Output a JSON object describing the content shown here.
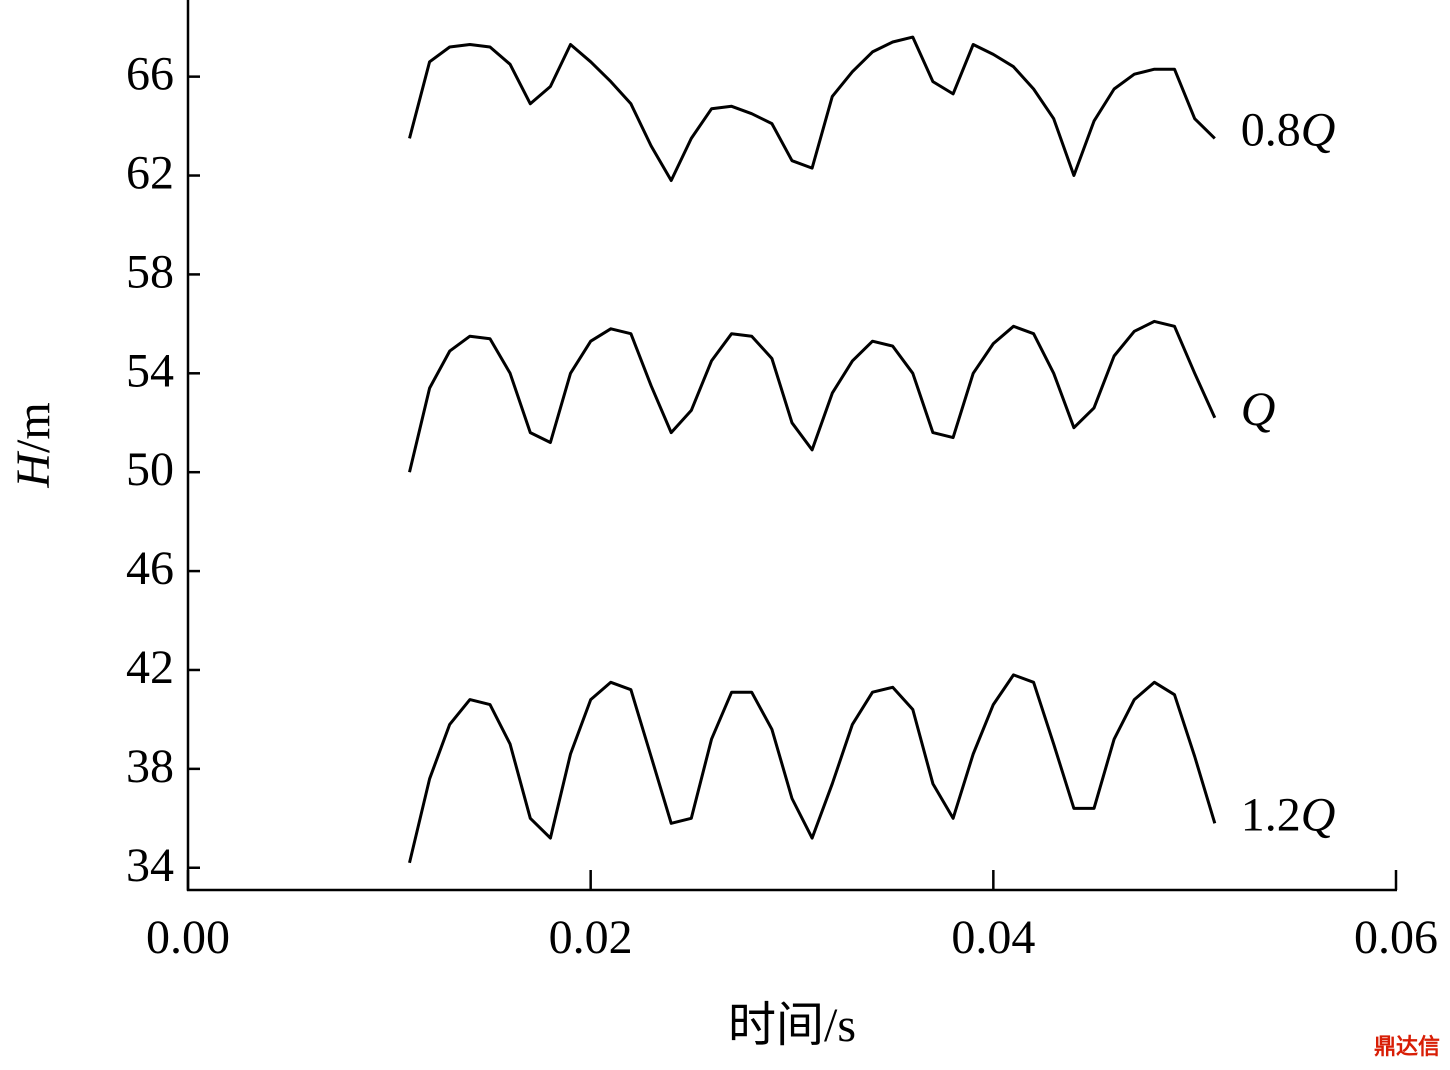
{
  "chart_data": {
    "type": "line",
    "ylabel": "H/m",
    "xlabel": "时间/s",
    "watermark": "鼎达信",
    "xlim": [
      0,
      0.06
    ],
    "ylim": [
      33.1,
      69.1
    ],
    "xticks": [
      {
        "value": 0,
        "label": "0.00"
      },
      0.02,
      0.04,
      0.06
    ],
    "yticks": [
      34,
      38,
      42,
      46,
      50,
      54,
      58,
      62,
      66
    ],
    "x": [
      0.011,
      0.012,
      0.013,
      0.014,
      0.015,
      0.016,
      0.017,
      0.018,
      0.019,
      0.02,
      0.021,
      0.022,
      0.023,
      0.024,
      0.025,
      0.026,
      0.027,
      0.028,
      0.029,
      0.03,
      0.031,
      0.032,
      0.033,
      0.034,
      0.035,
      0.036,
      0.037,
      0.038,
      0.039,
      0.04,
      0.041,
      0.042,
      0.043,
      0.044,
      0.045,
      0.046,
      0.047,
      0.048,
      0.049,
      0.05,
      0.051
    ],
    "series": [
      {
        "name": "0.8Q",
        "color": "#000000",
        "values": [
          63.5,
          66.6,
          67.2,
          67.3,
          67.2,
          66.5,
          64.9,
          65.6,
          67.3,
          66.6,
          65.8,
          64.9,
          63.2,
          61.8,
          63.5,
          64.7,
          64.8,
          64.5,
          64.1,
          62.6,
          62.3,
          65.2,
          66.2,
          67.0,
          67.4,
          67.6,
          65.8,
          65.3,
          67.3,
          66.9,
          66.4,
          65.5,
          64.3,
          62.0,
          64.2,
          65.5,
          66.1,
          66.3,
          66.3,
          64.3,
          63.5
        ]
      },
      {
        "name": "Q",
        "color": "#000000",
        "values": [
          50.0,
          53.4,
          54.9,
          55.5,
          55.4,
          54.0,
          51.6,
          51.2,
          54.0,
          55.3,
          55.8,
          55.6,
          53.5,
          51.6,
          52.5,
          54.5,
          55.6,
          55.5,
          54.6,
          52.0,
          50.9,
          53.2,
          54.5,
          55.3,
          55.1,
          54.0,
          51.6,
          51.4,
          54.0,
          55.2,
          55.9,
          55.6,
          54.0,
          51.8,
          52.6,
          54.7,
          55.7,
          56.1,
          55.9,
          54.0,
          52.2
        ]
      },
      {
        "name": "1.2Q",
        "color": "#000000",
        "values": [
          34.2,
          37.6,
          39.8,
          40.8,
          40.6,
          39.0,
          36.0,
          35.2,
          38.6,
          40.8,
          41.5,
          41.2,
          38.5,
          35.8,
          36.0,
          39.2,
          41.1,
          41.1,
          39.6,
          36.8,
          35.2,
          37.4,
          39.8,
          41.1,
          41.3,
          40.4,
          37.4,
          36.0,
          38.6,
          40.6,
          41.8,
          41.5,
          39.0,
          36.4,
          36.4,
          39.2,
          40.8,
          41.5,
          41.0,
          38.5,
          35.8
        ]
      }
    ]
  }
}
